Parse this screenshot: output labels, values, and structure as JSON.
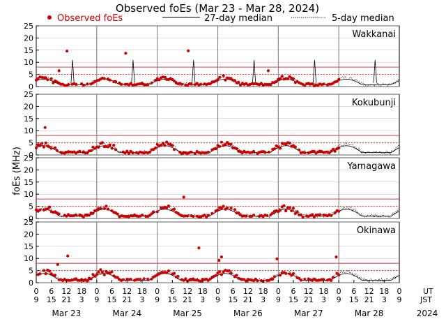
{
  "chart_data": {
    "type": "scatter",
    "title": "Observed foEs (Mar 23 - Mar 28, 2024)",
    "legend": {
      "observed": "Observed foEs",
      "median27": "27-day median",
      "median5": "5-day median",
      "placement": "top"
    },
    "ylabel": "foEs (MHz)",
    "ylim": [
      0,
      25
    ],
    "yticks": [
      0,
      5,
      10,
      15,
      20,
      25
    ],
    "colors": {
      "observed": "#cc0000",
      "median": "#000000",
      "threshold": "#d04040"
    },
    "x_unit_label_ut": "UT",
    "x_unit_label_jst": "JST",
    "year_label": "2024",
    "days": [
      "Mar 23",
      "Mar 24",
      "Mar 25",
      "Mar 26",
      "Mar 27",
      "Mar 28"
    ],
    "ut_ticks": [
      "0",
      "6",
      "12",
      "18",
      "0",
      "6",
      "12",
      "18",
      "0",
      "6",
      "12",
      "18",
      "0",
      "6",
      "12",
      "18",
      "0",
      "6",
      "12",
      "18",
      "0",
      "6",
      "12",
      "18",
      "0"
    ],
    "jst_ticks": [
      "9",
      "15",
      "21",
      "3",
      "9",
      "15",
      "21",
      "3",
      "9",
      "15",
      "21",
      "3",
      "9",
      "15",
      "21",
      "3",
      "9",
      "15",
      "21",
      "3",
      "9",
      "15",
      "21",
      "3",
      "9"
    ],
    "threshold_lines_mhz": [
      5,
      8
    ],
    "stations": [
      {
        "name": "Wakkanai",
        "sporadic_points": [
          [
            12.2,
            14.6
          ],
          [
            35.5,
            13.7
          ],
          [
            60.3,
            14.7
          ],
          [
            92,
            6.5
          ],
          [
            9,
            6.5
          ]
        ],
        "spike_days": [
          0.6,
          1.6,
          2.6,
          3.6,
          4.6,
          5.6
        ],
        "spike_height": 11,
        "obs_hours": [
          0,
          120
        ]
      },
      {
        "name": "Kokubunji",
        "sporadic_points": [
          [
            3.5,
            11.3
          ]
        ],
        "spike_days": [],
        "spike_height": 0,
        "obs_hours": [
          0,
          120
        ]
      },
      {
        "name": "Yamagawa",
        "sporadic_points": [
          [
            58.5,
            8.8
          ]
        ],
        "spike_days": [],
        "spike_height": 0,
        "obs_hours": [
          0,
          120
        ]
      },
      {
        "name": "Okinawa",
        "sporadic_points": [
          [
            12.5,
            11
          ],
          [
            64.5,
            14.3
          ],
          [
            73.5,
            10.6
          ],
          [
            72.5,
            9.2
          ],
          [
            95.5,
            9.8
          ],
          [
            119,
            10.6
          ],
          [
            8.5,
            7.5
          ]
        ],
        "spike_days": [],
        "spike_height": 0,
        "obs_hours": [
          0,
          120
        ]
      }
    ]
  }
}
